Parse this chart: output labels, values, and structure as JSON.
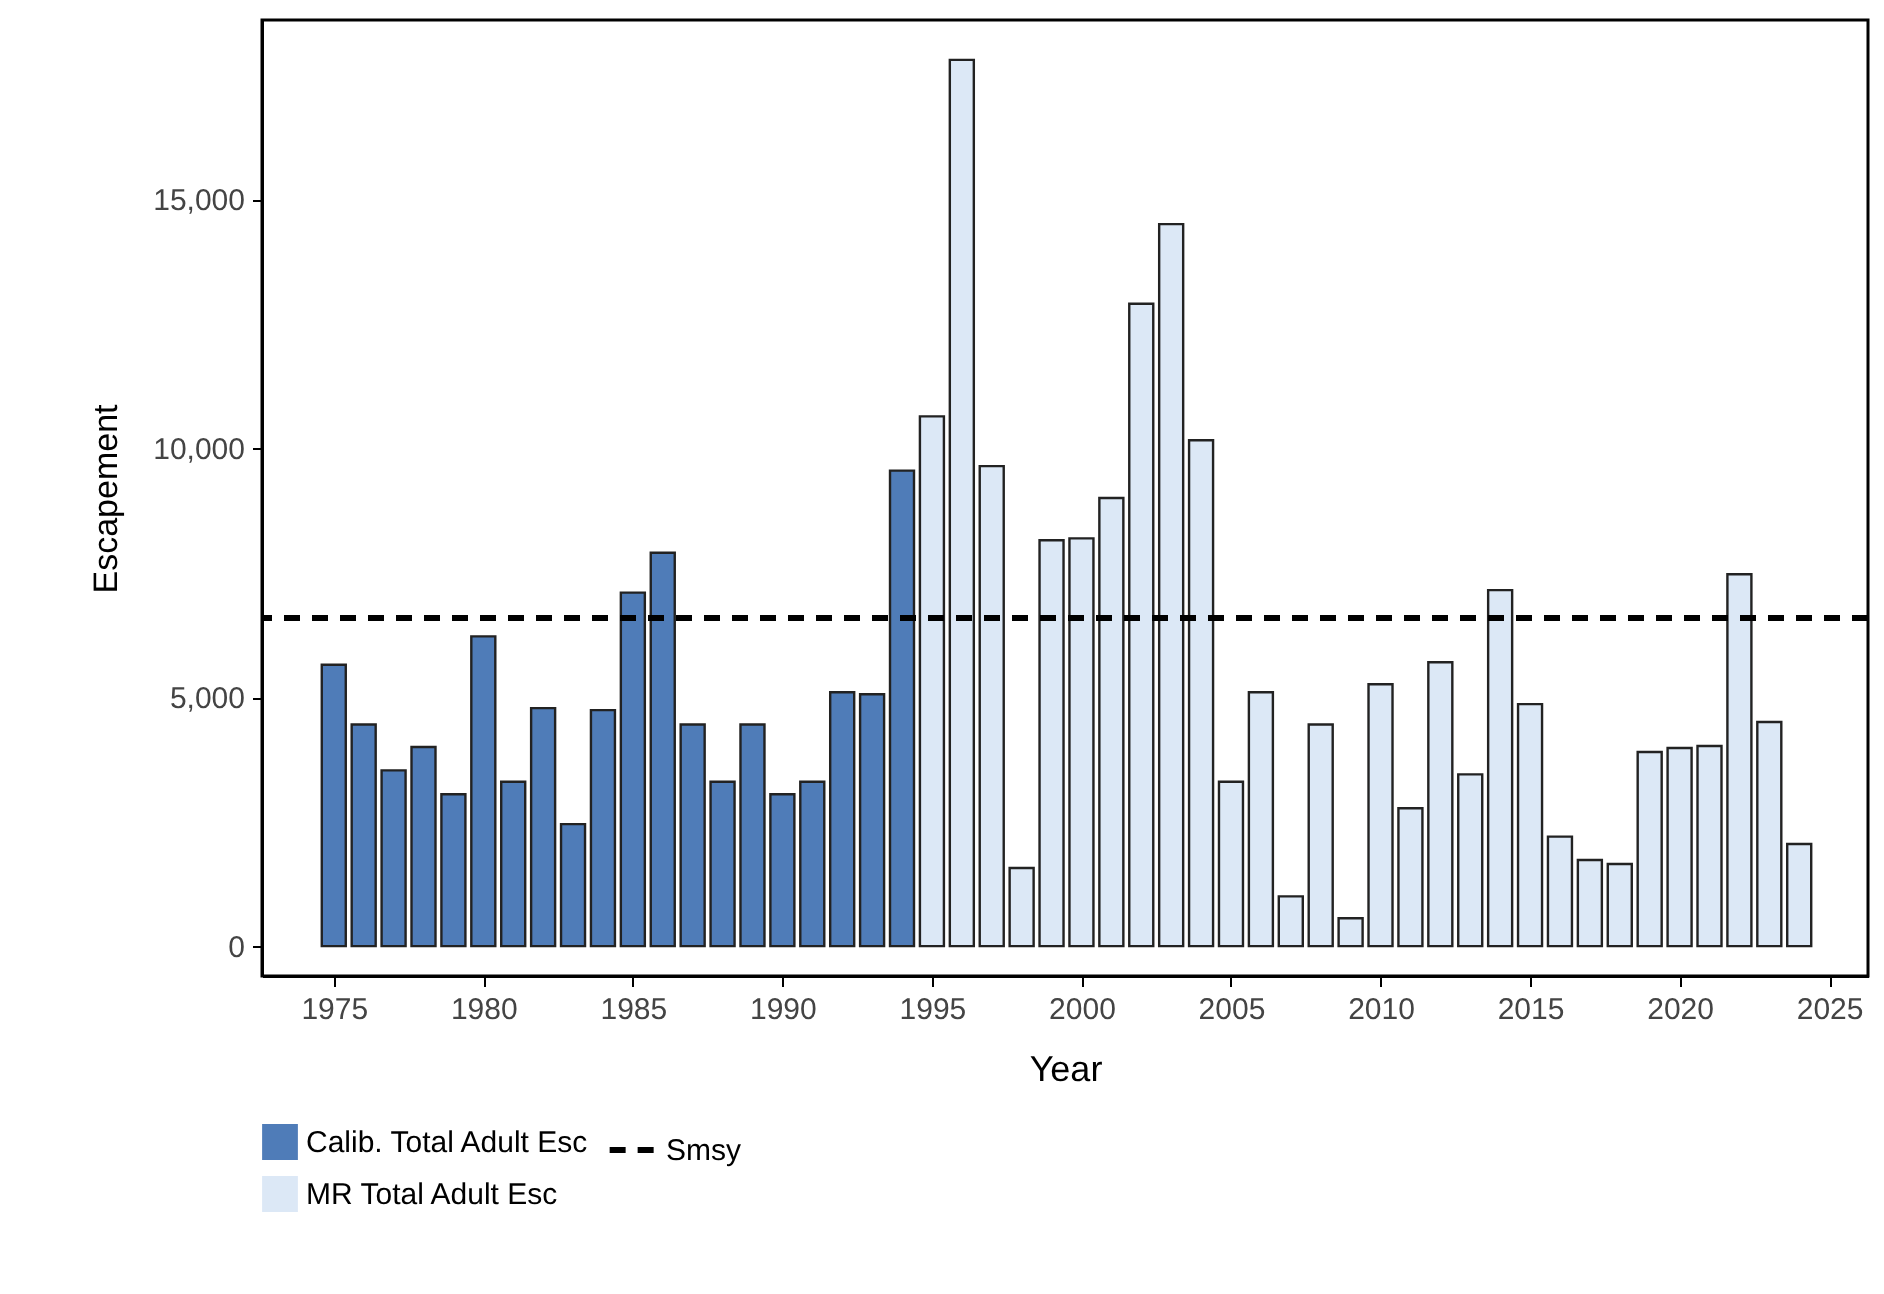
{
  "chart_data": {
    "type": "bar",
    "xlabel": "Year",
    "ylabel": "Escapement",
    "xlim": [
      1972.6,
      2026.3
    ],
    "xticks": [
      1975,
      1980,
      1985,
      1990,
      1995,
      2000,
      2005,
      2010,
      2015,
      2020,
      2025
    ],
    "ylim": [
      -600,
      18600
    ],
    "yticks": [
      {
        "value": 0,
        "label": "0"
      },
      {
        "value": 5000,
        "label": "5,000"
      },
      {
        "value": 10000,
        "label": "10,000"
      },
      {
        "value": 15000,
        "label": "15,000"
      }
    ],
    "grid": false,
    "legend": "bottom",
    "series": [
      {
        "name": "Calib. Total Adult Esc",
        "color": "#4f7cb8",
        "x": [
          1975,
          1976,
          1977,
          1978,
          1979,
          1980,
          1981,
          1982,
          1983,
          1984,
          1985,
          1986,
          1987,
          1988,
          1989,
          1990,
          1991,
          1992,
          1993,
          1994
        ],
        "values": [
          5650,
          4450,
          3530,
          4000,
          3050,
          6220,
          3300,
          4780,
          2450,
          4740,
          7100,
          7900,
          4450,
          3300,
          4450,
          3050,
          3300,
          5100,
          5060,
          9550
        ]
      },
      {
        "name": "MR Total Adult Esc",
        "color": "#dce8f6",
        "x": [
          1995,
          1996,
          1997,
          1998,
          1999,
          2000,
          2001,
          2002,
          2003,
          2004,
          2005,
          2006,
          2007,
          2008,
          2009,
          2010,
          2011,
          2012,
          2013,
          2014,
          2015,
          2016,
          2017,
          2018,
          2019,
          2020,
          2021,
          2022,
          2023,
          2024
        ],
        "values": [
          10640,
          17800,
          9640,
          1570,
          8150,
          8190,
          9000,
          12900,
          14500,
          10160,
          3300,
          5100,
          1000,
          4450,
          560,
          5260,
          2770,
          5700,
          3450,
          7150,
          4860,
          2200,
          1730,
          1650,
          3900,
          3980,
          4020,
          7470,
          4500,
          2050
        ]
      }
    ],
    "ref_lines": [
      {
        "axis": "y",
        "value": 6590,
        "label": "Smsy",
        "color": "#000000",
        "line_style": "dashed"
      }
    ]
  }
}
